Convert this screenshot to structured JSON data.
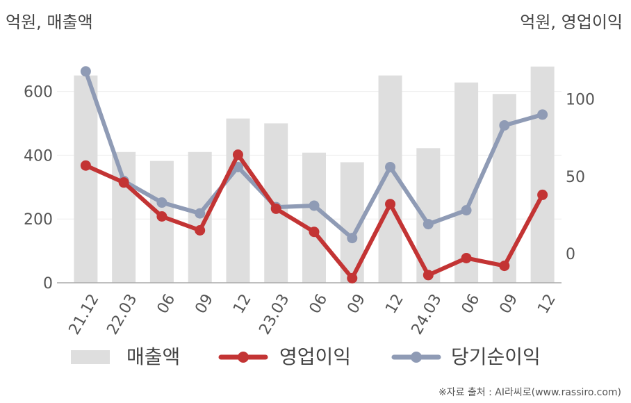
{
  "header": {
    "left_unit": "억원, 매출액",
    "right_unit": "억원, 영업이익"
  },
  "source": "※자료 출처 : AI라씨로(www.rassiro.com)",
  "legend": {
    "revenue": "매출액",
    "operating_profit": "영업이익",
    "net_profit": "당기순이익"
  },
  "colors": {
    "bar": "#dedede",
    "operating_profit": "#c33434",
    "net_profit": "#8f9bb5",
    "axis": "#aaaaaa",
    "grid": "#eeeeee"
  },
  "chart_data": {
    "type": "bar",
    "categories": [
      "21.12",
      "22.03",
      "06",
      "09",
      "12",
      "23.03",
      "06",
      "09",
      "12",
      "24.03",
      "06",
      "09",
      "12"
    ],
    "series": [
      {
        "name": "매출액",
        "type": "bar",
        "axis": "left",
        "values": [
          650,
          410,
          382,
          410,
          515,
          500,
          408,
          378,
          650,
          422,
          628,
          592,
          678
        ]
      },
      {
        "name": "영업이익",
        "type": "line",
        "axis": "right",
        "values": [
          57,
          46,
          24,
          15,
          64,
          29,
          14,
          -16,
          32,
          -14,
          -3,
          -8,
          38
        ]
      },
      {
        "name": "당기순이익",
        "type": "line",
        "axis": "right",
        "values": [
          118,
          47,
          33,
          26,
          56,
          30,
          31,
          10,
          56,
          19,
          28,
          83,
          90
        ]
      }
    ],
    "left_axis": {
      "ticks": [
        0,
        200,
        400,
        600
      ],
      "ylim": [
        0,
        745
      ]
    },
    "right_axis": {
      "ticks": [
        0,
        50,
        100
      ],
      "ylim": [
        -19,
        135
      ]
    },
    "grid": true,
    "legend_position": "bottom"
  }
}
